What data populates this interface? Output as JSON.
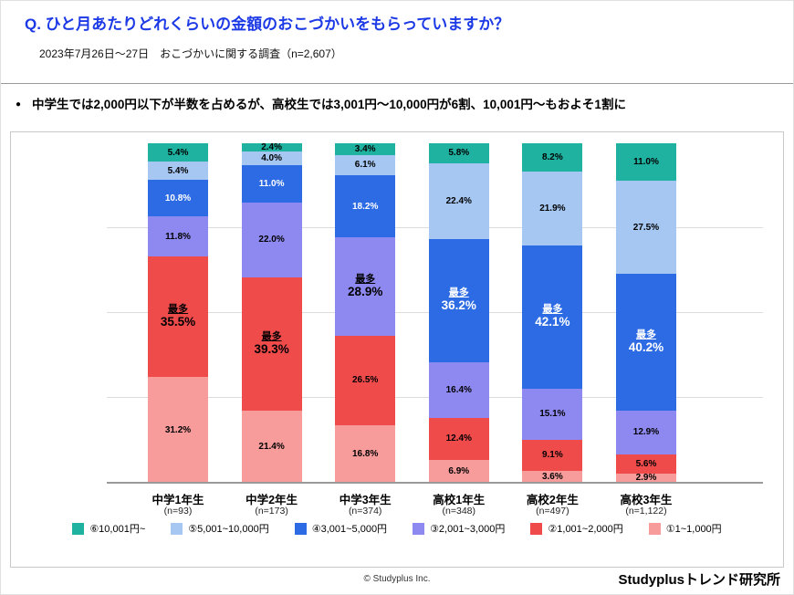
{
  "header": {
    "title": "Q. ひと月あたりどれくらいの金額のおこづかいをもらっていますか？",
    "subtitle": "2023年7月26日～27日　おこづかいに関する調査（n=2,607）"
  },
  "summary": {
    "bullet": "●",
    "text": "中学生では2,000円以下が半数を占めるが、高校生では3,001円～10,000円が6割、10,001円～もおよそ1割に"
  },
  "chart_data": {
    "type": "bar",
    "variant": "stacked-100-percent",
    "unit": "%",
    "categories": [
      "中学1年生",
      "中学2年生",
      "中学3年生",
      "高校1年生",
      "高校2年生",
      "高校3年生"
    ],
    "sample_sizes": [
      "(n=93)",
      "(n=173)",
      "(n=374)",
      "(n=348)",
      "(n=497)",
      "(n=1,122)"
    ],
    "series": [
      {
        "name": "⑥10,001円~",
        "color": "#1FB2A1",
        "label_color": "#000000",
        "values": [
          5.4,
          2.4,
          3.4,
          5.8,
          8.2,
          11.0
        ]
      },
      {
        "name": "⑤5,001~10,000円",
        "color": "#A5C7F2",
        "label_color": "#000000",
        "values": [
          5.4,
          4.0,
          6.1,
          22.4,
          21.9,
          27.5
        ]
      },
      {
        "name": "④3,001~5,000円",
        "color": "#2D6BE4",
        "label_color": "#FFFFFF",
        "values": [
          10.8,
          11.0,
          18.2,
          36.2,
          42.1,
          40.2
        ]
      },
      {
        "name": "③2,001~3,000円",
        "color": "#8E89F0",
        "label_color": "#000000",
        "values": [
          11.8,
          22.0,
          28.9,
          16.4,
          15.1,
          12.9
        ]
      },
      {
        "name": "②1,001~2,000円",
        "color": "#F04B4B",
        "label_color": "#000000",
        "values": [
          35.5,
          39.3,
          26.5,
          12.4,
          9.1,
          5.6
        ]
      },
      {
        "name": "①1~1,000円",
        "color": "#F79B9B",
        "label_color": "#000000",
        "values": [
          31.2,
          21.4,
          16.8,
          6.9,
          3.6,
          2.9
        ]
      }
    ],
    "stack_order_top_to_bottom": true,
    "max_label": "最多",
    "max_series_index": [
      4,
      4,
      3,
      2,
      2,
      2
    ],
    "ylim": [
      0,
      100
    ],
    "grid_percents": [
      25,
      50,
      75
    ],
    "legend_position": "bottom"
  },
  "footer": {
    "copyright": "© Studyplus Inc.",
    "brand": "Studyplusトレンド研究所"
  }
}
